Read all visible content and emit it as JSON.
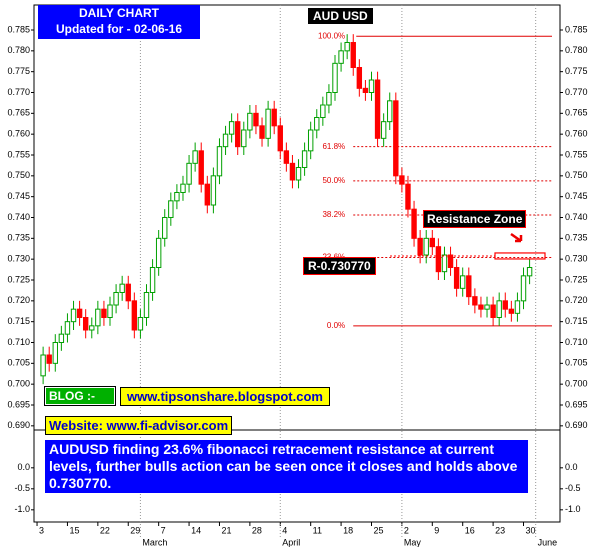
{
  "chart_data": {
    "type": "candlestick",
    "title": "AUD USD",
    "header": [
      "DAILY CHART",
      "Updated for - 02-06-16"
    ],
    "open": [
      0.702,
      0.707,
      0.705,
      0.71,
      0.712,
      0.715,
      0.718,
      0.716,
      0.713,
      0.714,
      0.718,
      0.716,
      0.719,
      0.722,
      0.724,
      0.72,
      0.713,
      0.716,
      0.722,
      0.728,
      0.735,
      0.74,
      0.744,
      0.746,
      0.748,
      0.753,
      0.756,
      0.748,
      0.743,
      0.75,
      0.757,
      0.76,
      0.763,
      0.757,
      0.761,
      0.765,
      0.762,
      0.759,
      0.766,
      0.762,
      0.756,
      0.753,
      0.749,
      0.752,
      0.756,
      0.761,
      0.764,
      0.767,
      0.77,
      0.777,
      0.78,
      0.782,
      0.776,
      0.771,
      0.77,
      0.773,
      0.759,
      0.763,
      0.768,
      0.75,
      0.748,
      0.742,
      0.735,
      0.731,
      0.735,
      0.733,
      0.727,
      0.731,
      0.728,
      0.723,
      0.726,
      0.721,
      0.719,
      0.718,
      0.719,
      0.716,
      0.72,
      0.718,
      0.717,
      0.72,
      0.726
    ],
    "high": [
      0.709,
      0.709,
      0.712,
      0.714,
      0.717,
      0.72,
      0.72,
      0.718,
      0.716,
      0.72,
      0.72,
      0.721,
      0.724,
      0.726,
      0.726,
      0.722,
      0.718,
      0.724,
      0.73,
      0.737,
      0.742,
      0.746,
      0.748,
      0.75,
      0.755,
      0.758,
      0.758,
      0.75,
      0.752,
      0.759,
      0.762,
      0.765,
      0.765,
      0.763,
      0.767,
      0.767,
      0.764,
      0.768,
      0.768,
      0.764,
      0.758,
      0.755,
      0.754,
      0.758,
      0.763,
      0.766,
      0.769,
      0.772,
      0.779,
      0.782,
      0.784,
      0.784,
      0.778,
      0.773,
      0.775,
      0.775,
      0.765,
      0.77,
      0.77,
      0.752,
      0.75,
      0.744,
      0.737,
      0.737,
      0.737,
      0.735,
      0.733,
      0.733,
      0.73,
      0.728,
      0.728,
      0.723,
      0.721,
      0.721,
      0.721,
      0.722,
      0.722,
      0.72,
      0.722,
      0.728,
      0.73
    ],
    "low": [
      0.7,
      0.703,
      0.703,
      0.708,
      0.71,
      0.713,
      0.714,
      0.711,
      0.711,
      0.712,
      0.714,
      0.714,
      0.717,
      0.72,
      0.718,
      0.711,
      0.711,
      0.714,
      0.72,
      0.726,
      0.733,
      0.738,
      0.742,
      0.744,
      0.746,
      0.751,
      0.746,
      0.741,
      0.741,
      0.748,
      0.755,
      0.758,
      0.755,
      0.755,
      0.759,
      0.76,
      0.757,
      0.757,
      0.76,
      0.754,
      0.751,
      0.747,
      0.747,
      0.75,
      0.754,
      0.759,
      0.762,
      0.765,
      0.768,
      0.775,
      0.778,
      0.774,
      0.769,
      0.768,
      0.768,
      0.757,
      0.757,
      0.761,
      0.748,
      0.746,
      0.74,
      0.733,
      0.729,
      0.729,
      0.731,
      0.725,
      0.725,
      0.726,
      0.721,
      0.721,
      0.719,
      0.717,
      0.716,
      0.716,
      0.714,
      0.714,
      0.716,
      0.715,
      0.715,
      0.718,
      0.724
    ],
    "close": [
      0.707,
      0.705,
      0.71,
      0.712,
      0.715,
      0.718,
      0.716,
      0.713,
      0.714,
      0.718,
      0.716,
      0.719,
      0.722,
      0.724,
      0.72,
      0.713,
      0.716,
      0.722,
      0.728,
      0.735,
      0.74,
      0.744,
      0.746,
      0.748,
      0.753,
      0.756,
      0.748,
      0.743,
      0.75,
      0.757,
      0.76,
      0.763,
      0.757,
      0.761,
      0.765,
      0.762,
      0.759,
      0.766,
      0.762,
      0.756,
      0.753,
      0.749,
      0.752,
      0.756,
      0.761,
      0.764,
      0.767,
      0.77,
      0.777,
      0.78,
      0.782,
      0.776,
      0.771,
      0.77,
      0.773,
      0.759,
      0.763,
      0.768,
      0.75,
      0.748,
      0.742,
      0.735,
      0.731,
      0.735,
      0.733,
      0.727,
      0.731,
      0.728,
      0.723,
      0.726,
      0.721,
      0.719,
      0.718,
      0.719,
      0.716,
      0.72,
      0.718,
      0.717,
      0.72,
      0.726,
      0.728
    ],
    "up_color": "#00a000",
    "down_color": "#ff0000",
    "xlim": [
      -1.5,
      85
    ],
    "ylim": [
      0.689,
      0.791
    ],
    "yticks": [
      {
        "value": 0.69,
        "label": "0.690"
      },
      0.695,
      {
        "value": 0.7,
        "label": "0.700"
      },
      0.705,
      {
        "value": 0.71,
        "label": "0.710"
      },
      0.715,
      {
        "value": 0.72,
        "label": "0.720"
      },
      0.725,
      {
        "value": 0.73,
        "label": "0.730"
      },
      0.735,
      {
        "value": 0.74,
        "label": "0.740"
      },
      0.745,
      {
        "value": 0.75,
        "label": "0.750"
      },
      0.755,
      {
        "value": 0.76,
        "label": "0.760"
      },
      0.765,
      {
        "value": 0.77,
        "label": "0.770"
      },
      0.775,
      {
        "value": 0.78,
        "label": "0.780"
      },
      0.785
    ],
    "lower_ylim": [
      -1.29,
      0.9
    ],
    "lower_yticks": [
      {
        "value": 0,
        "label": "0.0"
      },
      -0.5,
      {
        "value": -1,
        "label": "-1.0"
      }
    ],
    "xticks": [
      {
        "value": -1,
        "label": "3"
      },
      {
        "value": 4,
        "label": "15"
      },
      {
        "value": 9,
        "label": "22"
      },
      {
        "value": 14,
        "label": "29"
      },
      {
        "value": 19,
        "label": "7"
      },
      {
        "value": 24,
        "label": "14"
      },
      {
        "value": 29,
        "label": "21"
      },
      {
        "value": 34,
        "label": "28"
      },
      {
        "value": 39,
        "label": "4"
      },
      {
        "value": 44,
        "label": "11"
      },
      {
        "value": 49,
        "label": "18"
      },
      {
        "value": 54,
        "label": "25"
      },
      {
        "value": 59,
        "label": "2"
      },
      {
        "value": 64,
        "label": "9"
      },
      {
        "value": 69,
        "label": "16"
      },
      {
        "value": 74,
        "label": "23"
      },
      {
        "value": 79,
        "label": "30"
      }
    ],
    "months": [
      {
        "value": 16,
        "label": "March"
      },
      {
        "value": 39,
        "label": "April"
      },
      {
        "value": 59,
        "label": "May"
      },
      {
        "value": 81,
        "label": "June"
      }
    ],
    "fib_color": "#e00000",
    "fib_levels": [
      {
        "value": 0.7835,
        "label": "100.0%"
      },
      {
        "value": 0.757,
        "label": "61.8%"
      },
      {
        "value": 0.7488,
        "label": "50.0%"
      },
      {
        "value": 0.7406,
        "label": "38.2%"
      },
      {
        "value": 0.7304,
        "label": "23.6%"
      },
      {
        "value": 0.714,
        "label": "0.0%"
      }
    ],
    "resistance_zone": "Resistance Zone",
    "resistance": {
      "value": 0.73077,
      "label": "R-0.730770"
    },
    "blog_label": "BLOG :-",
    "blog": "www.tipsonshare.blogspot.com",
    "website": "Website: www.fi-advisor.com",
    "comment": "AUDUSD finding 23.6% fibonacci retracement resistance at current levels, further bulls action can be seen once it closes and holds above 0.730770."
  }
}
